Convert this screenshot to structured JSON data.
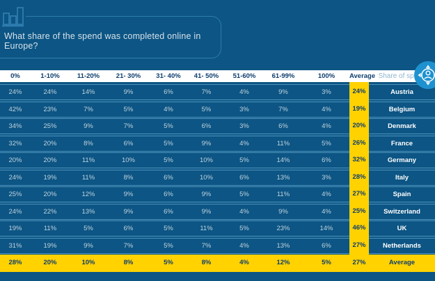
{
  "title": {
    "text": "What share of the spend was completed online in Europe?"
  },
  "colors": {
    "background": "#0C5584",
    "accent_yellow": "#FFD200",
    "header_bg": "#FFFFFF",
    "header_text": "#0E3E6E",
    "cell_text": "#C0D2DE",
    "row_divider": "#4E93BD",
    "outline_blue": "#2E7DAF",
    "circle_button": "#1E92D0"
  },
  "icons": {
    "top_left": "bar-chart-icon",
    "floating_right": "person-target-icon"
  },
  "table": {
    "columns": [
      {
        "id": "0pct",
        "label": "0%"
      },
      {
        "id": "1-10pct",
        "label": "1-10%"
      },
      {
        "id": "11-20pct",
        "label": "11-20%"
      },
      {
        "id": "21-30pct",
        "label": "21- 30%"
      },
      {
        "id": "31-40pct",
        "label": "31- 40%"
      },
      {
        "id": "41-50pct",
        "label": "41- 50%"
      },
      {
        "id": "51-60pct",
        "label": "51-60%"
      },
      {
        "id": "61-99pct",
        "label": "61-99%"
      },
      {
        "id": "100pct",
        "label": "100%"
      },
      {
        "id": "average",
        "label": "Average"
      },
      {
        "id": "share-of-spend",
        "label": "Share of spend"
      }
    ]
  },
  "chart_data": {
    "type": "table",
    "title": "What share of the spend was completed online in Europe?",
    "categories": [
      "0%",
      "1-10%",
      "11-20%",
      "21- 30%",
      "31- 40%",
      "41- 50%",
      "51-60%",
      "61-99%",
      "100%"
    ],
    "value_unit": "%",
    "average_column_label": "Average",
    "rows": [
      {
        "label": "Austria",
        "values": [
          24,
          24,
          14,
          9,
          6,
          7,
          4,
          9,
          3
        ],
        "average": 24,
        "is_average_row": false
      },
      {
        "label": "Belgium",
        "values": [
          42,
          23,
          7,
          5,
          4,
          5,
          3,
          7,
          4
        ],
        "average": 19,
        "is_average_row": false
      },
      {
        "label": "Denmark",
        "values": [
          34,
          25,
          9,
          7,
          5,
          6,
          3,
          6,
          4
        ],
        "average": 20,
        "is_average_row": false
      },
      {
        "label": "France",
        "values": [
          32,
          20,
          8,
          6,
          5,
          9,
          4,
          11,
          5
        ],
        "average": 26,
        "is_average_row": false
      },
      {
        "label": "Germany",
        "values": [
          20,
          20,
          11,
          10,
          5,
          10,
          5,
          14,
          6
        ],
        "average": 32,
        "is_average_row": false
      },
      {
        "label": "Italy",
        "values": [
          24,
          19,
          11,
          8,
          6,
          10,
          6,
          13,
          3
        ],
        "average": 28,
        "is_average_row": false
      },
      {
        "label": "Spain",
        "values": [
          25,
          20,
          12,
          9,
          6,
          9,
          5,
          11,
          4
        ],
        "average": 27,
        "is_average_row": false
      },
      {
        "label": "Switzerland",
        "values": [
          24,
          22,
          13,
          9,
          6,
          9,
          4,
          9,
          4
        ],
        "average": 25,
        "is_average_row": false
      },
      {
        "label": "UK",
        "values": [
          19,
          11,
          5,
          6,
          5,
          11,
          5,
          23,
          14
        ],
        "average": 46,
        "is_average_row": false
      },
      {
        "label": "Netherlands",
        "values": [
          31,
          19,
          9,
          7,
          5,
          7,
          4,
          13,
          6
        ],
        "average": 27,
        "is_average_row": false
      },
      {
        "label": "Average",
        "values": [
          28,
          20,
          10,
          8,
          5,
          8,
          4,
          12,
          5
        ],
        "average": 27,
        "is_average_row": true
      }
    ]
  }
}
